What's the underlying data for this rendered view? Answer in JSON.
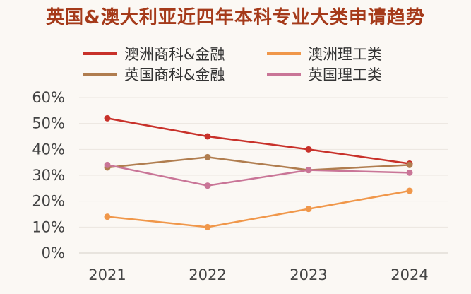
{
  "chart_data": {
    "type": "line",
    "title": "英国&澳大利亚近四年本科专业大类申请趋势",
    "xlabel": "",
    "ylabel": "",
    "categories": [
      "2021",
      "2022",
      "2023",
      "2024"
    ],
    "ylim": [
      0,
      60
    ],
    "yticks": [
      "0%",
      "10%",
      "20%",
      "30%",
      "40%",
      "50%",
      "60%"
    ],
    "grid": true,
    "legend_position": "top",
    "series": [
      {
        "name": "澳洲商科&金融",
        "color": "#c8312a",
        "values": [
          52,
          45,
          40,
          34.5
        ]
      },
      {
        "name": "澳洲理工类",
        "color": "#f0974a",
        "values": [
          14,
          10,
          17,
          24
        ]
      },
      {
        "name": "英国商科&金融",
        "color": "#b07d4f",
        "values": [
          33,
          37,
          32,
          34
        ]
      },
      {
        "name": "英国理工类",
        "color": "#c97597",
        "values": [
          34,
          26,
          32,
          31
        ]
      }
    ]
  }
}
